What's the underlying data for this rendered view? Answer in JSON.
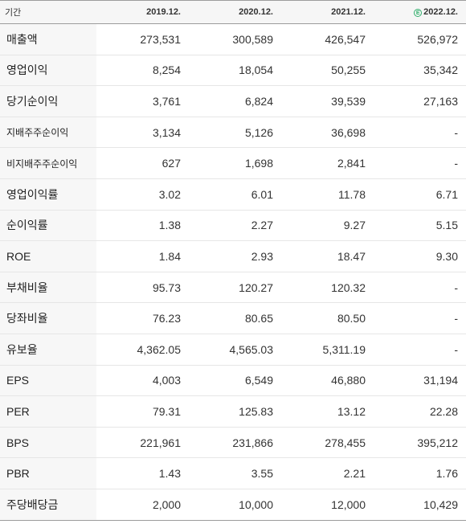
{
  "header": {
    "label": "기간",
    "columns": [
      "2019.12.",
      "2020.12.",
      "2021.12.",
      "2022.12."
    ],
    "estimate_badge": "E",
    "estimate_color": "#2fae6b"
  },
  "rows": [
    {
      "label": "매출액",
      "values": [
        "273,531",
        "300,589",
        "426,547",
        "526,972"
      ]
    },
    {
      "label": "영업이익",
      "values": [
        "8,254",
        "18,054",
        "50,255",
        "35,342"
      ]
    },
    {
      "label": "당기순이익",
      "values": [
        "3,761",
        "6,824",
        "39,539",
        "27,163"
      ]
    },
    {
      "label": "지배주주순이익",
      "values": [
        "3,134",
        "5,126",
        "36,698",
        "-"
      ]
    },
    {
      "label": "비지배주주순이익",
      "values": [
        "627",
        "1,698",
        "2,841",
        "-"
      ]
    },
    {
      "label": "영업이익률",
      "values": [
        "3.02",
        "6.01",
        "11.78",
        "6.71"
      ]
    },
    {
      "label": "순이익률",
      "values": [
        "1.38",
        "2.27",
        "9.27",
        "5.15"
      ]
    },
    {
      "label": "ROE",
      "values": [
        "1.84",
        "2.93",
        "18.47",
        "9.30"
      ]
    },
    {
      "label": "부채비율",
      "values": [
        "95.73",
        "120.27",
        "120.32",
        "-"
      ]
    },
    {
      "label": "당좌비율",
      "values": [
        "76.23",
        "80.65",
        "80.50",
        "-"
      ]
    },
    {
      "label": "유보율",
      "values": [
        "4,362.05",
        "4,565.03",
        "5,311.19",
        "-"
      ]
    },
    {
      "label": "EPS",
      "values": [
        "4,003",
        "6,549",
        "46,880",
        "31,194"
      ]
    },
    {
      "label": "PER",
      "values": [
        "79.31",
        "125.83",
        "13.12",
        "22.28"
      ]
    },
    {
      "label": "BPS",
      "values": [
        "221,961",
        "231,866",
        "278,455",
        "395,212"
      ]
    },
    {
      "label": "PBR",
      "values": [
        "1.43",
        "3.55",
        "2.21",
        "1.76"
      ]
    },
    {
      "label": "주당배당금",
      "values": [
        "2,000",
        "10,000",
        "12,000",
        "10,429"
      ]
    }
  ]
}
